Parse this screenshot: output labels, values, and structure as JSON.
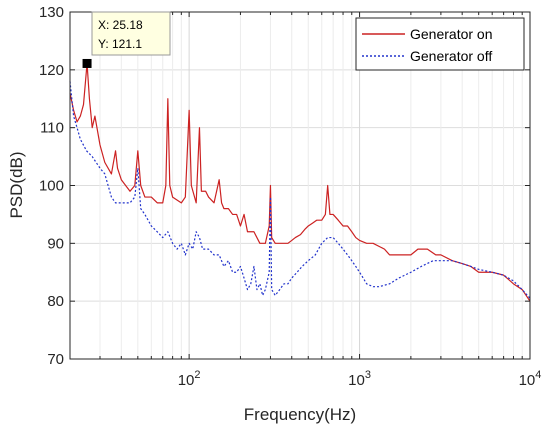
{
  "chart_data": {
    "type": "line",
    "xlabel": "Frequency(Hz)",
    "ylabel": "PSD(dB)",
    "xscale": "log",
    "xlim": [
      20,
      10000
    ],
    "ylim": [
      70,
      130
    ],
    "y_ticks": [
      70,
      80,
      90,
      100,
      110,
      120,
      130
    ],
    "x_ticks": [
      {
        "base": "10",
        "exp": "2",
        "value": 100
      },
      {
        "base": "10",
        "exp": "3",
        "value": 1000
      },
      {
        "base": "10",
        "exp": "4",
        "value": 10000
      }
    ],
    "grid": true,
    "legend_position": "top-right",
    "series": [
      {
        "name": "Generator on",
        "color": "#cc2222",
        "style": "solid",
        "points": [
          [
            20,
            116
          ],
          [
            21,
            113
          ],
          [
            22,
            111
          ],
          [
            23,
            112
          ],
          [
            24,
            114
          ],
          [
            25.18,
            121.1
          ],
          [
            26,
            115
          ],
          [
            27,
            110
          ],
          [
            28,
            112
          ],
          [
            30,
            107
          ],
          [
            32,
            104
          ],
          [
            35,
            102
          ],
          [
            37,
            106
          ],
          [
            38,
            103
          ],
          [
            40,
            101
          ],
          [
            45,
            99
          ],
          [
            48,
            100
          ],
          [
            50,
            106
          ],
          [
            52,
            100
          ],
          [
            55,
            98
          ],
          [
            60,
            98
          ],
          [
            65,
            97
          ],
          [
            70,
            97
          ],
          [
            73,
            100
          ],
          [
            75,
            115
          ],
          [
            77,
            100
          ],
          [
            80,
            98
          ],
          [
            90,
            97
          ],
          [
            95,
            98
          ],
          [
            100,
            113
          ],
          [
            103,
            100
          ],
          [
            110,
            97
          ],
          [
            115,
            110
          ],
          [
            118,
            99
          ],
          [
            125,
            99
          ],
          [
            130,
            98
          ],
          [
            140,
            97
          ],
          [
            150,
            101
          ],
          [
            155,
            97
          ],
          [
            160,
            96
          ],
          [
            170,
            96
          ],
          [
            180,
            95
          ],
          [
            190,
            95
          ],
          [
            200,
            93
          ],
          [
            210,
            95
          ],
          [
            220,
            92
          ],
          [
            240,
            92
          ],
          [
            260,
            90
          ],
          [
            280,
            90
          ],
          [
            295,
            93
          ],
          [
            300,
            100
          ],
          [
            305,
            91
          ],
          [
            320,
            90
          ],
          [
            340,
            90
          ],
          [
            360,
            90
          ],
          [
            380,
            90
          ],
          [
            400,
            90.5
          ],
          [
            420,
            91
          ],
          [
            450,
            91.5
          ],
          [
            480,
            92.5
          ],
          [
            500,
            93
          ],
          [
            530,
            93.5
          ],
          [
            560,
            94
          ],
          [
            600,
            94
          ],
          [
            630,
            95
          ],
          [
            650,
            100
          ],
          [
            670,
            95
          ],
          [
            700,
            95
          ],
          [
            750,
            94
          ],
          [
            800,
            93
          ],
          [
            850,
            93
          ],
          [
            900,
            92
          ],
          [
            950,
            91
          ],
          [
            1000,
            90.5
          ],
          [
            1100,
            90
          ],
          [
            1200,
            90
          ],
          [
            1400,
            89
          ],
          [
            1500,
            88
          ],
          [
            1700,
            88
          ],
          [
            2000,
            88
          ],
          [
            2200,
            89
          ],
          [
            2500,
            89
          ],
          [
            2800,
            88
          ],
          [
            3000,
            88
          ],
          [
            3500,
            87
          ],
          [
            4000,
            86.5
          ],
          [
            4500,
            86
          ],
          [
            5000,
            85
          ],
          [
            6000,
            85
          ],
          [
            7000,
            84.5
          ],
          [
            8000,
            83
          ],
          [
            9000,
            82
          ],
          [
            10000,
            80
          ]
        ]
      },
      {
        "name": "Generator off",
        "color": "#2233cc",
        "style": "dotted",
        "points": [
          [
            20,
            118
          ],
          [
            21,
            112
          ],
          [
            22,
            110
          ],
          [
            23,
            108
          ],
          [
            25,
            106
          ],
          [
            27,
            105
          ],
          [
            30,
            103
          ],
          [
            32,
            102
          ],
          [
            35,
            98
          ],
          [
            37,
            97
          ],
          [
            40,
            97
          ],
          [
            45,
            97
          ],
          [
            48,
            98
          ],
          [
            50,
            103
          ],
          [
            52,
            96
          ],
          [
            55,
            95
          ],
          [
            60,
            93
          ],
          [
            65,
            92
          ],
          [
            70,
            91
          ],
          [
            75,
            92
          ],
          [
            80,
            90
          ],
          [
            85,
            89
          ],
          [
            90,
            90
          ],
          [
            95,
            88
          ],
          [
            100,
            90
          ],
          [
            105,
            89
          ],
          [
            110,
            92
          ],
          [
            115,
            91
          ],
          [
            120,
            89
          ],
          [
            130,
            89
          ],
          [
            140,
            88
          ],
          [
            150,
            88
          ],
          [
            160,
            86
          ],
          [
            170,
            87
          ],
          [
            180,
            85
          ],
          [
            190,
            85
          ],
          [
            200,
            86
          ],
          [
            210,
            84
          ],
          [
            220,
            82
          ],
          [
            230,
            83
          ],
          [
            240,
            86
          ],
          [
            250,
            82
          ],
          [
            260,
            83
          ],
          [
            270,
            81
          ],
          [
            280,
            82
          ],
          [
            295,
            85
          ],
          [
            300,
            98
          ],
          [
            305,
            82
          ],
          [
            320,
            81
          ],
          [
            340,
            82
          ],
          [
            360,
            83
          ],
          [
            380,
            83
          ],
          [
            400,
            84
          ],
          [
            430,
            85
          ],
          [
            460,
            86
          ],
          [
            500,
            87
          ],
          [
            550,
            88
          ],
          [
            600,
            90
          ],
          [
            650,
            91
          ],
          [
            700,
            91
          ],
          [
            750,
            90
          ],
          [
            800,
            89
          ],
          [
            850,
            88
          ],
          [
            900,
            87
          ],
          [
            950,
            86
          ],
          [
            1000,
            85
          ],
          [
            1050,
            84
          ],
          [
            1100,
            83
          ],
          [
            1200,
            82.5
          ],
          [
            1300,
            82.5
          ],
          [
            1500,
            83
          ],
          [
            1700,
            84
          ],
          [
            2000,
            85
          ],
          [
            2300,
            86
          ],
          [
            2700,
            87
          ],
          [
            3000,
            87
          ],
          [
            3500,
            87
          ],
          [
            4000,
            86.5
          ],
          [
            4500,
            86
          ],
          [
            5000,
            85.5
          ],
          [
            6000,
            85
          ],
          [
            7000,
            84.5
          ],
          [
            8000,
            83.5
          ],
          [
            9000,
            82
          ],
          [
            10000,
            80.5
          ]
        ]
      }
    ],
    "datatip": {
      "x_text": "X: 25.18",
      "y_text": "Y: 121.1",
      "x": 25.18,
      "y": 121.1
    }
  }
}
